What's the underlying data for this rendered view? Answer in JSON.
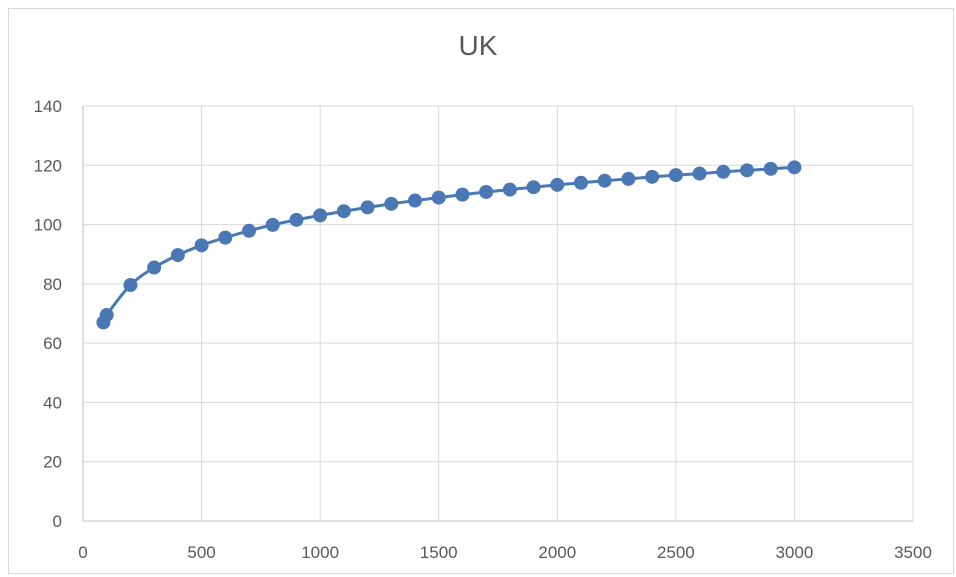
{
  "chart_data": {
    "type": "scatter",
    "title": "UK",
    "xlabel": "",
    "ylabel": "",
    "xlim": [
      0,
      3500
    ],
    "ylim": [
      0,
      140
    ],
    "xticks": [
      0,
      500,
      1000,
      1500,
      2000,
      2500,
      3000,
      3500
    ],
    "yticks": [
      0,
      20,
      40,
      60,
      80,
      100,
      120,
      140
    ],
    "grid": true,
    "legend": "none",
    "line": "smooth",
    "marker": "circle",
    "series": [
      {
        "color": "#4a78b5",
        "x": [
          86,
          100,
          200,
          300,
          400,
          500,
          600,
          700,
          800,
          900,
          1000,
          1100,
          1200,
          1300,
          1400,
          1500,
          1600,
          1700,
          1800,
          1900,
          2000,
          2100,
          2200,
          2300,
          2400,
          2500,
          2600,
          2700,
          2800,
          2900,
          3000
        ],
        "y": [
          67.0,
          69.5,
          79.6,
          85.5,
          89.7,
          93.0,
          95.6,
          97.9,
          99.9,
          101.6,
          103.1,
          104.5,
          105.8,
          107.0,
          108.1,
          109.1,
          110.1,
          111.0,
          111.8,
          112.6,
          113.4,
          114.1,
          114.8,
          115.4,
          116.1,
          116.7,
          117.2,
          117.8,
          118.3,
          118.8,
          119.3
        ]
      }
    ]
  }
}
